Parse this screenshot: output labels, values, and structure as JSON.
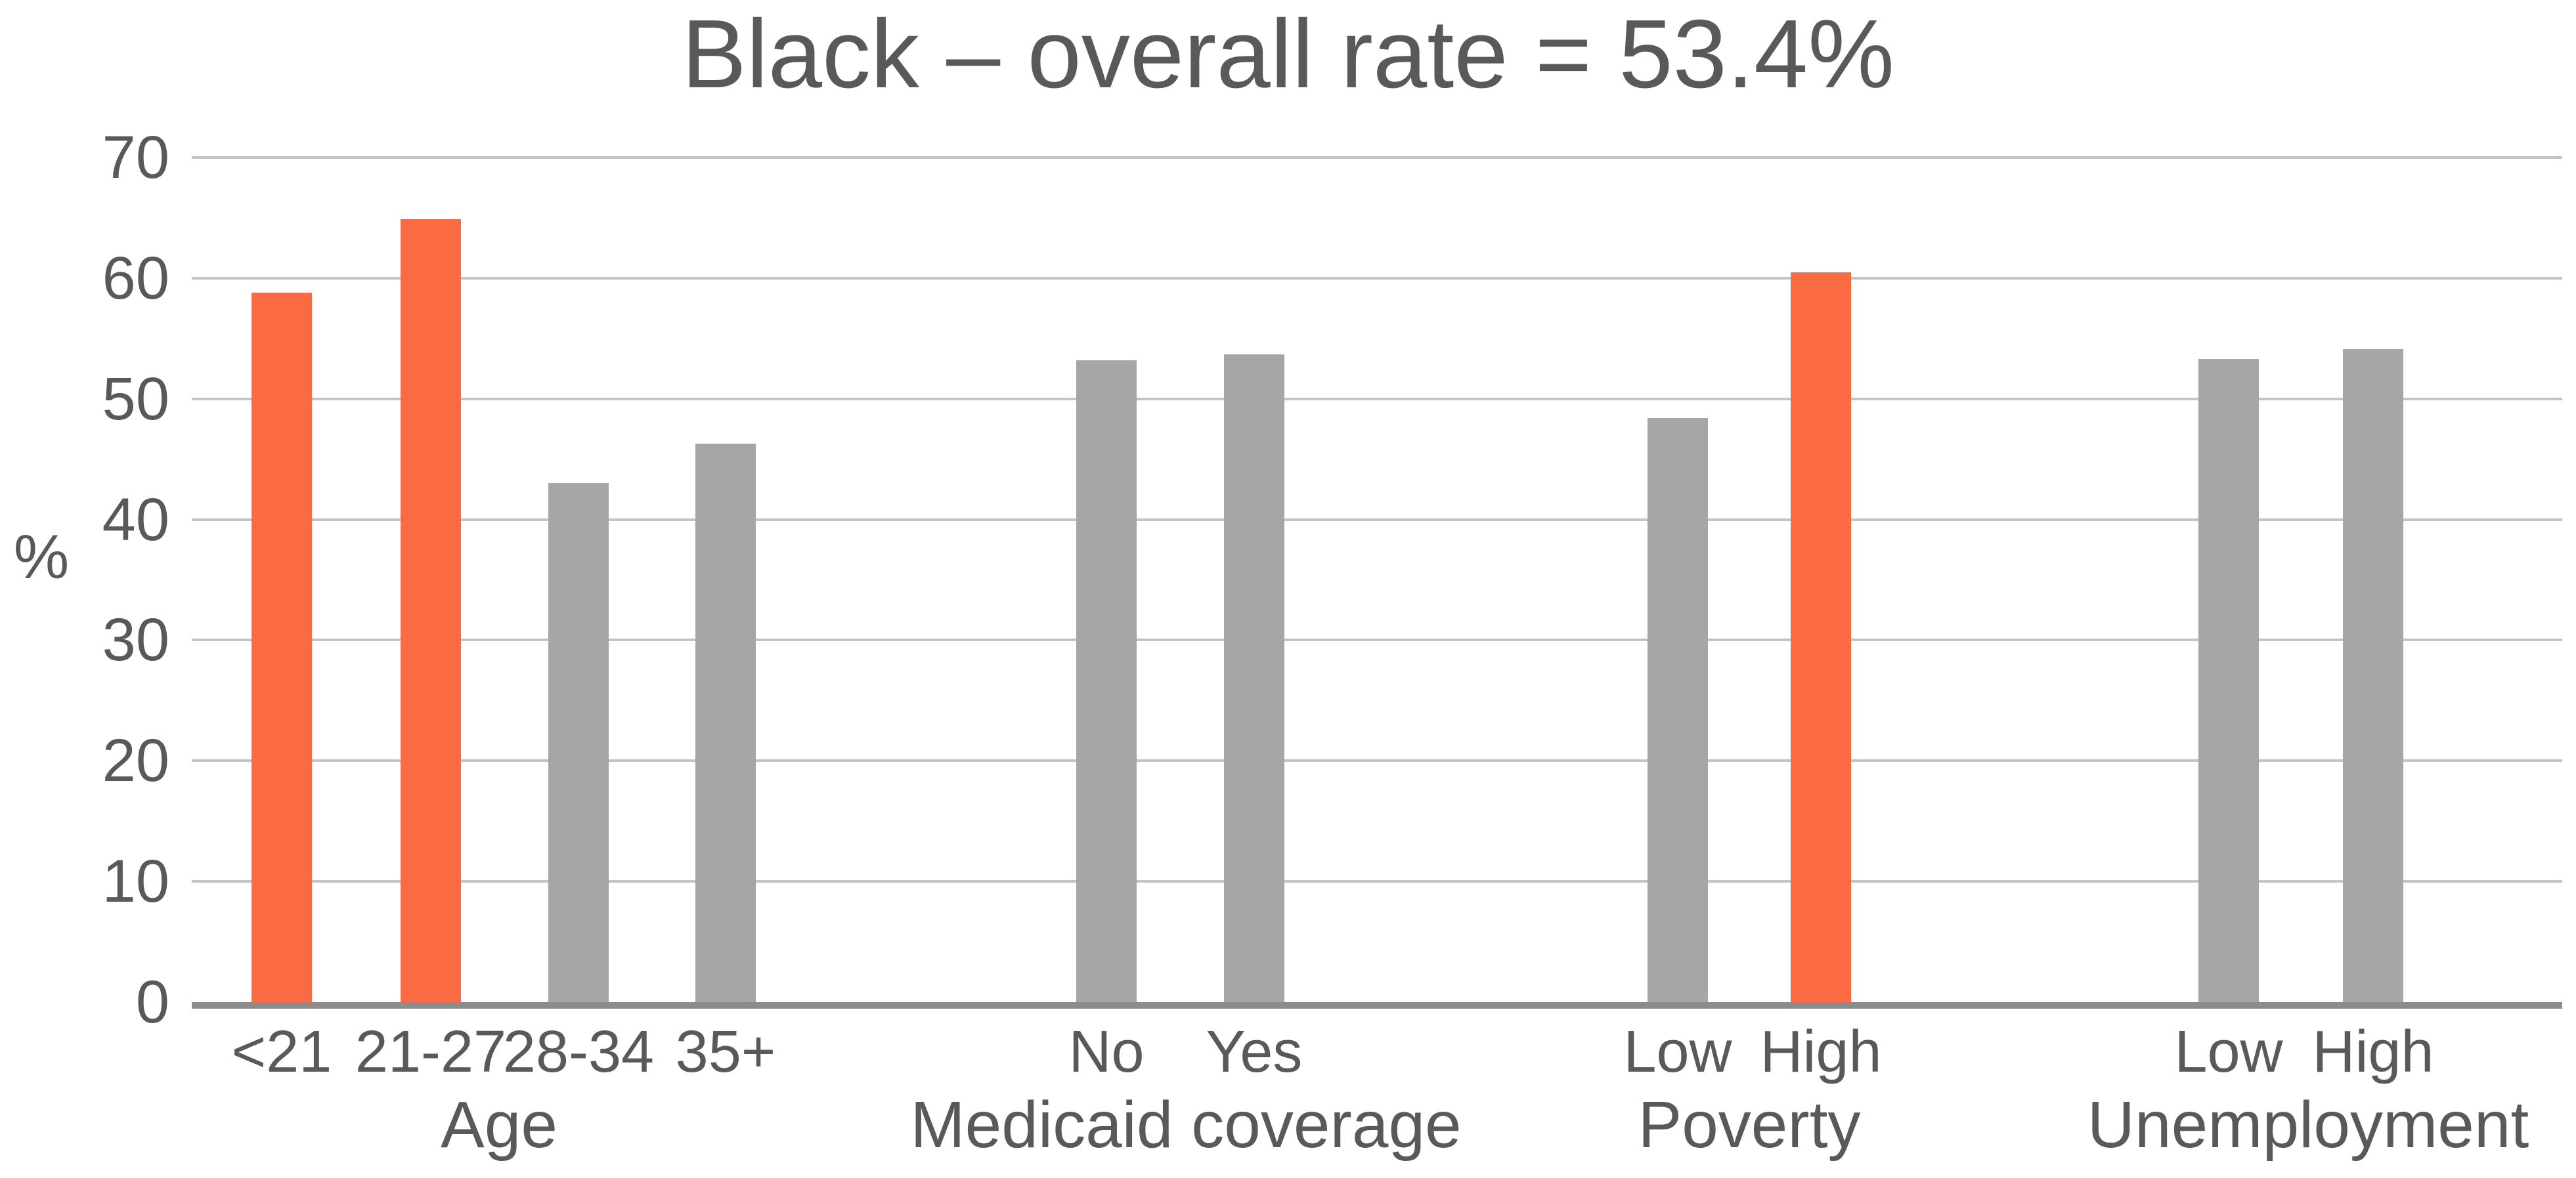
{
  "title": "Black – overall rate = 53.4%",
  "chart_data": {
    "type": "bar",
    "title": "Black – overall rate = 53.4%",
    "ylabel": "%",
    "ylim": [
      0,
      70
    ],
    "ystep": 10,
    "grid": true,
    "groups": [
      {
        "label": "Age",
        "categories": [
          "<21",
          "21-27",
          "28-34",
          "35+"
        ],
        "values": [
          58.8,
          64.9,
          43.0,
          46.3
        ],
        "highlighted": [
          true,
          true,
          false,
          false
        ]
      },
      {
        "label": "Medicaid coverage",
        "categories": [
          "No",
          "Yes"
        ],
        "values": [
          53.2,
          53.7
        ],
        "highlighted": [
          false,
          false
        ]
      },
      {
        "label": "Poverty",
        "categories": [
          "Low",
          "High"
        ],
        "values": [
          48.4,
          60.5
        ],
        "highlighted": [
          false,
          true
        ]
      },
      {
        "label": "Unemployment",
        "categories": [
          "Low",
          "High"
        ],
        "values": [
          53.3,
          54.1
        ],
        "highlighted": [
          false,
          false
        ]
      }
    ],
    "colors": {
      "highlight_bar": "#FA6B44",
      "default_bar": "#A6A6A6",
      "gridline": "#C4C4C4",
      "axis_line": "#8C8C8C",
      "text": "#595959"
    }
  }
}
